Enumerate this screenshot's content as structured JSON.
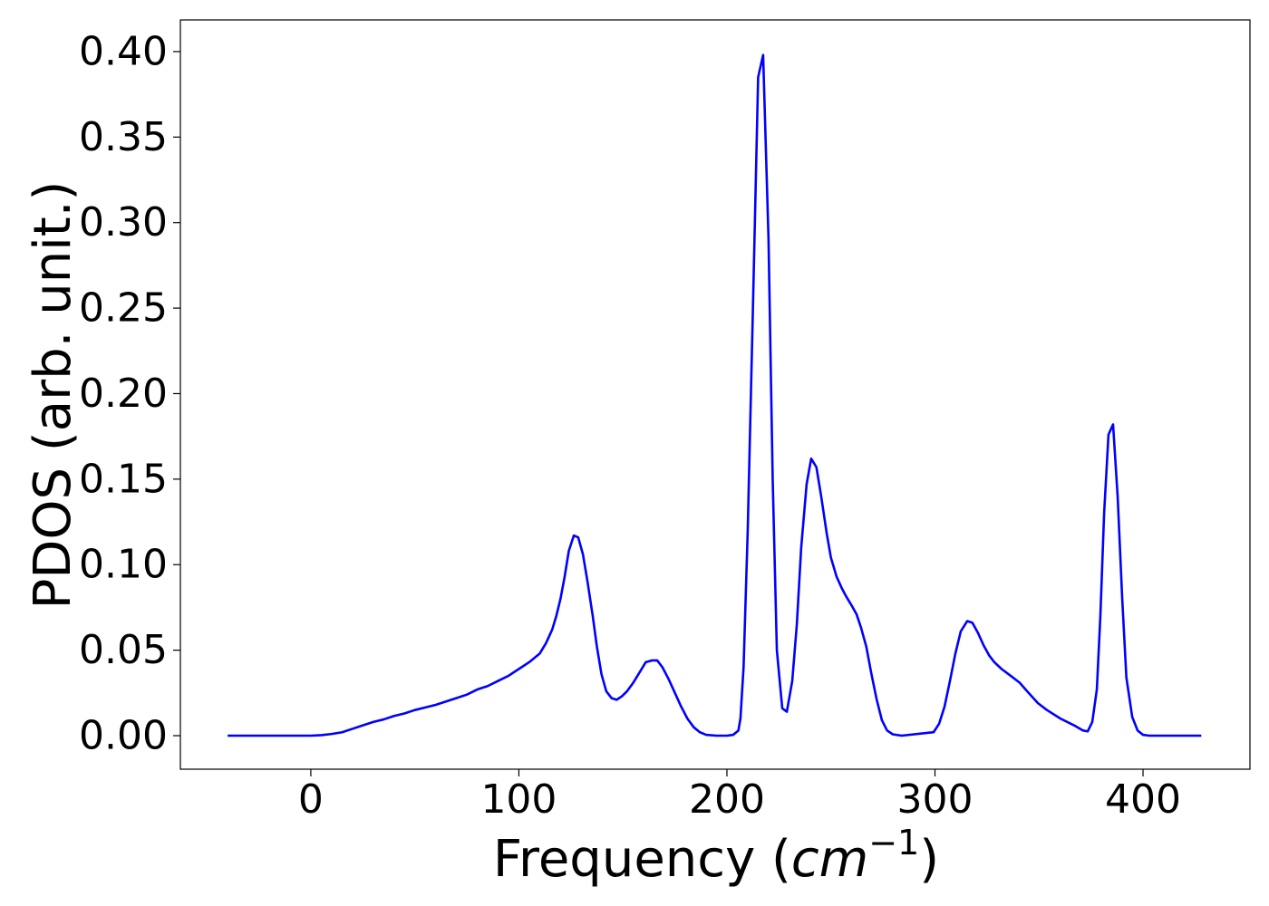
{
  "chart_data": {
    "type": "line",
    "ylabel": "PDOS (arb. unit.)",
    "xlabel": {
      "prefix": "Frequency (",
      "unit": "cm",
      "exponent": "−1",
      "suffix": ")"
    },
    "xlim": [
      -62.7,
      451.4
    ],
    "ylim": [
      -0.0196,
      0.4185
    ],
    "xticks": [
      0,
      100,
      200,
      300,
      400
    ],
    "yticks": [
      {
        "value": 0,
        "label": "0.00"
      },
      {
        "value": 0.05,
        "label": "0.05"
      },
      {
        "value": 0.1,
        "label": "0.10"
      },
      {
        "value": 0.15,
        "label": "0.15"
      },
      {
        "value": 0.2,
        "label": "0.20"
      },
      {
        "value": 0.25,
        "label": "0.25"
      },
      {
        "value": 0.3,
        "label": "0.30"
      },
      {
        "value": 0.35,
        "label": "0.35"
      },
      {
        "value": 0.4,
        "label": "0.40"
      }
    ],
    "grid": false,
    "color": "#0000ff",
    "x": [
      -40,
      0,
      5,
      10,
      15,
      20,
      25,
      30,
      35,
      40,
      45,
      50,
      55,
      60,
      65,
      70,
      75,
      80,
      85,
      90,
      95,
      100,
      105,
      110,
      113,
      116,
      118,
      120,
      122,
      124,
      126.4,
      128.5,
      130.8,
      133,
      135.5,
      137.5,
      139.7,
      142,
      144.5,
      147,
      149.5,
      152,
      155,
      158,
      161,
      164,
      166.5,
      169,
      172,
      175,
      178,
      181,
      184,
      187,
      190,
      195,
      200,
      203,
      205.5,
      206.5,
      208,
      210,
      212.5,
      215,
      217.4,
      220,
      222,
      224,
      226.6,
      228.8,
      231.4,
      233.6,
      235.7,
      238.3,
      240.5,
      243,
      245.3,
      248,
      250,
      252.7,
      255.3,
      257.5,
      260,
      262.3,
      264.5,
      267,
      269.3,
      272,
      274.5,
      277,
      279.7,
      284,
      299.3,
      302,
      304.6,
      307.2,
      309.8,
      312.4,
      315.5,
      318,
      320.7,
      323.3,
      326,
      328.5,
      332,
      336.4,
      340.7,
      345,
      349.5,
      353.8,
      360.3,
      366.9,
      371.2,
      373.4,
      375.6,
      377.8,
      379.5,
      381.3,
      383.4,
      385.6,
      387.8,
      390,
      392,
      394.8,
      397.4,
      400,
      403,
      428
    ],
    "values": [
      0,
      0,
      0.0003,
      0.001,
      0.002,
      0.004,
      0.006,
      0.008,
      0.0095,
      0.0115,
      0.013,
      0.015,
      0.0165,
      0.018,
      0.02,
      0.022,
      0.024,
      0.027,
      0.029,
      0.032,
      0.035,
      0.039,
      0.043,
      0.048,
      0.054,
      0.062,
      0.07,
      0.08,
      0.093,
      0.108,
      0.117,
      0.116,
      0.106,
      0.09,
      0.07,
      0.052,
      0.036,
      0.026,
      0.022,
      0.021,
      0.023,
      0.026,
      0.031,
      0.037,
      0.043,
      0.044,
      0.044,
      0.04,
      0.033,
      0.025,
      0.017,
      0.01,
      0.005,
      0.002,
      0.0005,
      0,
      0,
      0.0005,
      0.003,
      0.01,
      0.04,
      0.12,
      0.25,
      0.385,
      0.398,
      0.29,
      0.15,
      0.05,
      0.016,
      0.014,
      0.032,
      0.065,
      0.11,
      0.147,
      0.162,
      0.157,
      0.14,
      0.118,
      0.104,
      0.093,
      0.086,
      0.081,
      0.076,
      0.071,
      0.063,
      0.052,
      0.037,
      0.021,
      0.009,
      0.003,
      0.0008,
      0,
      0.002,
      0.007,
      0.017,
      0.032,
      0.048,
      0.061,
      0.067,
      0.066,
      0.06,
      0.053,
      0.047,
      0.043,
      0.039,
      0.035,
      0.031,
      0.025,
      0.019,
      0.015,
      0.01,
      0.006,
      0.003,
      0.0025,
      0.008,
      0.027,
      0.07,
      0.13,
      0.176,
      0.182,
      0.14,
      0.08,
      0.034,
      0.011,
      0.003,
      0.0005,
      0,
      0
    ]
  }
}
